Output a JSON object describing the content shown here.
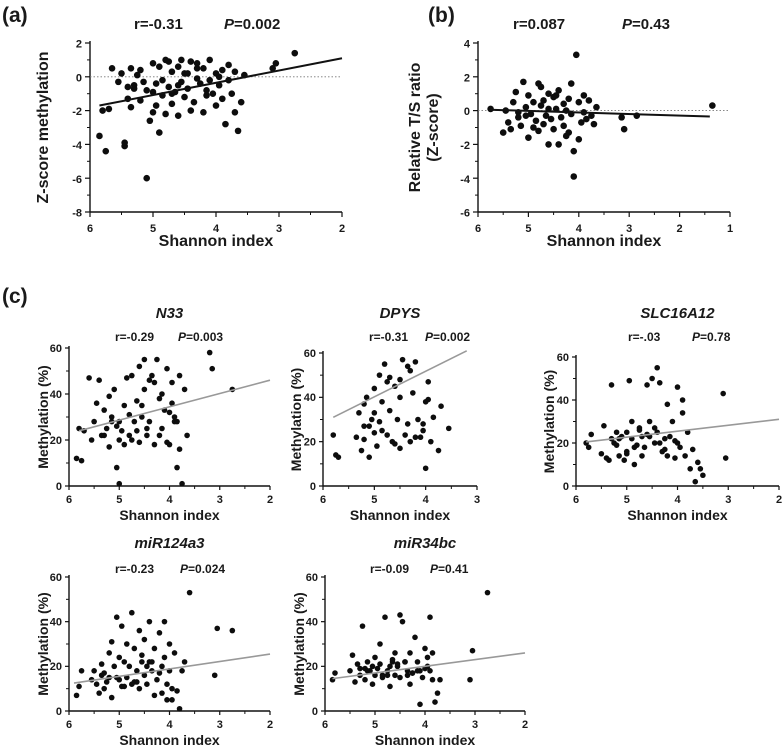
{
  "figure": {
    "panel_labels": [
      "(a)",
      "(b)",
      "(c)"
    ]
  },
  "chart_data": [
    {
      "id": "a",
      "type": "scatter",
      "panel_label": "(a)",
      "title": "",
      "stat_r": "r=-0.31",
      "stat_p_letter": "P",
      "stat_p_value": "=0.002",
      "xlabel": "Shannon index",
      "ylabel": "Z-score methylation",
      "xlim": [
        6,
        2
      ],
      "ylim": [
        -8,
        2
      ],
      "xticks": [
        6,
        5,
        4,
        3,
        2
      ],
      "yticks": [
        -8,
        -6,
        -4,
        -2,
        0,
        2
      ],
      "refline": 0,
      "fit": [
        [
          5.85,
          -1.7
        ],
        [
          2,
          1.1
        ]
      ],
      "fit_color": "#111111",
      "x": [
        5.85,
        5.8,
        5.75,
        5.7,
        5.65,
        5.55,
        5.5,
        5.45,
        5.45,
        5.4,
        5.35,
        5.3,
        5.3,
        5.25,
        5.2,
        5.2,
        5.15,
        5.1,
        5.1,
        5.05,
        5.0,
        5.0,
        4.95,
        4.95,
        4.9,
        4.9,
        4.85,
        4.85,
        4.8,
        4.8,
        4.75,
        4.75,
        4.7,
        4.7,
        4.65,
        4.6,
        4.6,
        4.55,
        4.55,
        4.5,
        4.5,
        4.45,
        4.4,
        4.4,
        4.35,
        4.3,
        4.3,
        4.25,
        4.2,
        4.2,
        4.15,
        4.1,
        4.1,
        4.05,
        4.0,
        4.0,
        3.95,
        3.9,
        3.9,
        3.85,
        3.8,
        3.8,
        3.75,
        3.7,
        3.7,
        3.65,
        3.6,
        3.55,
        3.1,
        3.05,
        2.75,
        5.0,
        4.6,
        4.3,
        5.35,
        4.15,
        3.95,
        5.4,
        4.45,
        4.7
      ],
      "y": [
        -3.5,
        -2.0,
        -4.4,
        -1.9,
        0.5,
        -0.3,
        0.2,
        -4.1,
        -3.9,
        -1.3,
        0.5,
        -0.5,
        -0.7,
        0.1,
        0.4,
        -1.4,
        -0.3,
        -0.8,
        -6.0,
        -2.6,
        -2.1,
        0.8,
        -0.4,
        -1.7,
        -3.3,
        0.6,
        -0.2,
        -1.1,
        -2.2,
        1.0,
        -0.6,
        0.9,
        -1.6,
        0.3,
        -0.9,
        -2.3,
        0.6,
        -0.3,
        1.0,
        -1.2,
        0.2,
        -0.7,
        -2.0,
        0.9,
        -1.5,
        -0.1,
        0.8,
        -0.4,
        -2.1,
        0.5,
        -0.8,
        -0.2,
        1.0,
        -1.0,
        0.2,
        -1.7,
        -0.5,
        0.4,
        -1.3,
        -2.8,
        -0.2,
        0.7,
        -1.0,
        0.3,
        -2.1,
        -3.2,
        -1.5,
        0.1,
        0.5,
        0.8,
        1.4,
        -0.9,
        -0.5,
        0.5,
        -1.8,
        -1.1,
        0.0,
        -0.6,
        0.2,
        -1.0
      ]
    },
    {
      "id": "b",
      "type": "scatter",
      "panel_label": "(b)",
      "title": "",
      "stat_r": "r=0.087",
      "stat_p_letter": "P",
      "stat_p_value": "=0.43",
      "xlabel": "Shannon index",
      "ylabel_lines": [
        "Relative T/S ratio",
        "(Z-score)"
      ],
      "xlim": [
        6,
        1
      ],
      "ylim": [
        -6,
        4
      ],
      "xticks": [
        6,
        5,
        4,
        3,
        2,
        1
      ],
      "yticks": [
        -6,
        -4,
        -2,
        0,
        2,
        4
      ],
      "refline": 0,
      "fit": [
        [
          5.75,
          0.05
        ],
        [
          1.4,
          -0.35
        ]
      ],
      "fit_color": "#111111",
      "x": [
        5.75,
        5.5,
        5.45,
        5.4,
        5.35,
        5.3,
        5.25,
        5.2,
        5.15,
        5.1,
        5.05,
        5.0,
        5.0,
        4.95,
        4.9,
        4.9,
        4.85,
        4.8,
        4.8,
        4.75,
        4.7,
        4.7,
        4.65,
        4.6,
        4.6,
        4.55,
        4.5,
        4.5,
        4.45,
        4.4,
        4.4,
        4.35,
        4.3,
        4.3,
        4.25,
        4.2,
        4.2,
        4.15,
        4.1,
        4.1,
        4.05,
        4.0,
        4.0,
        3.95,
        3.9,
        3.9,
        3.85,
        3.8,
        3.75,
        3.7,
        3.65,
        3.15,
        3.1,
        2.85,
        1.35,
        5.2,
        4.75,
        4.45,
        4.15,
        5.05,
        4.6,
        4.25
      ],
      "y": [
        0.1,
        -1.3,
        0.0,
        -0.7,
        -1.1,
        0.5,
        1.1,
        -0.4,
        -0.9,
        1.7,
        0.2,
        -1.6,
        0.9,
        -0.2,
        -1.0,
        0.5,
        -0.6,
        1.6,
        -1.2,
        0.3,
        -0.8,
        0.6,
        -0.3,
        -2.0,
        1.0,
        -0.5,
        -1.1,
        0.8,
        0.1,
        -2.0,
        1.2,
        -0.4,
        -0.9,
        0.4,
        0.0,
        -1.3,
        0.7,
        -0.2,
        -2.4,
        -3.9,
        3.3,
        -1.7,
        0.5,
        -0.7,
        -0.1,
        0.9,
        -0.5,
        0.6,
        -0.3,
        -0.8,
        0.2,
        -0.4,
        -1.1,
        -0.3,
        0.3,
        -0.1,
        1.4,
        0.9,
        1.6,
        -0.3,
        0.1,
        -1.5
      ]
    },
    {
      "id": "N33",
      "type": "scatter",
      "title": "N33",
      "stat_r": "r=-0.29",
      "stat_p_letter": "P",
      "stat_p_value": "=0.003",
      "xlabel": "Shannon index",
      "ylabel": "Methylation (%)",
      "xlim": [
        6,
        2
      ],
      "ylim": [
        0,
        60
      ],
      "xticks": [
        6,
        5,
        4,
        3,
        2
      ],
      "yticks": [
        0,
        20,
        40,
        60
      ],
      "fit": [
        [
          5.8,
          24
        ],
        [
          2,
          46
        ]
      ],
      "fit_color": "#999999",
      "x": [
        5.85,
        5.8,
        5.75,
        5.7,
        5.6,
        5.55,
        5.5,
        5.45,
        5.4,
        5.35,
        5.3,
        5.25,
        5.2,
        5.2,
        5.15,
        5.1,
        5.05,
        5.0,
        5.0,
        4.95,
        4.9,
        4.9,
        4.85,
        4.8,
        4.75,
        4.75,
        4.7,
        4.65,
        4.6,
        4.6,
        4.55,
        4.5,
        4.5,
        4.45,
        4.4,
        4.4,
        4.35,
        4.3,
        4.25,
        4.2,
        4.2,
        4.15,
        4.1,
        4.05,
        4.0,
        4.0,
        3.95,
        3.9,
        3.85,
        3.8,
        3.8,
        3.75,
        3.7,
        3.65,
        3.2,
        3.15,
        2.75,
        5.15,
        4.65,
        4.3,
        3.9,
        5.0,
        4.45,
        4.15,
        5.3,
        4.8,
        4.55,
        4.05,
        3.95,
        3.85,
        5.05
      ],
      "y": [
        12,
        25,
        11,
        24,
        47,
        20,
        28,
        36,
        46,
        22,
        33,
        25,
        39,
        17,
        30,
        42,
        8,
        28,
        20,
        24,
        18,
        35,
        47,
        22,
        20,
        48,
        28,
        37,
        52,
        19,
        30,
        42,
        55,
        22,
        46,
        28,
        48,
        18,
        55,
        38,
        22,
        25,
        33,
        51,
        18,
        32,
        36,
        28,
        8,
        16,
        48,
        1,
        42,
        22,
        58,
        51,
        42,
        28,
        24,
        45,
        30,
        1,
        25,
        40,
        22,
        31,
        35,
        19,
        45,
        28,
        26
      ]
    },
    {
      "id": "DPYS",
      "type": "scatter",
      "title": "DPYS",
      "stat_r": "r=-0.31",
      "stat_p_letter": "P",
      "stat_p_value": "=0.002",
      "xlabel": "Shannon index",
      "ylabel": "Methylation (%)",
      "xlim": [
        6,
        3
      ],
      "ylim": [
        0,
        60
      ],
      "xticks": [
        6,
        5,
        4,
        3
      ],
      "yticks": [
        0,
        20,
        40,
        60
      ],
      "fit": [
        [
          5.8,
          31
        ],
        [
          3.2,
          61
        ]
      ],
      "fit_color": "#999999",
      "x": [
        5.8,
        5.75,
        5.7,
        5.35,
        5.3,
        5.25,
        5.2,
        5.2,
        5.15,
        5.1,
        5.05,
        5.0,
        5.0,
        4.95,
        4.9,
        4.9,
        4.85,
        4.8,
        4.75,
        4.7,
        4.7,
        4.65,
        4.6,
        4.55,
        4.5,
        4.5,
        4.45,
        4.4,
        4.35,
        4.3,
        4.3,
        4.25,
        4.2,
        4.15,
        4.1,
        4.05,
        4.0,
        4.0,
        3.95,
        3.9,
        3.85,
        3.75,
        3.7,
        3.55,
        5.1,
        4.85,
        4.6,
        4.35,
        4.05,
        5.0,
        4.75,
        4.2,
        3.95,
        4.5,
        5.2
      ],
      "y": [
        23,
        14,
        13,
        22,
        33,
        16,
        27,
        37,
        40,
        13,
        30,
        24,
        44,
        18,
        50,
        29,
        25,
        55,
        23,
        34,
        49,
        20,
        45,
        30,
        17,
        40,
        57,
        23,
        28,
        52,
        20,
        42,
        56,
        30,
        22,
        25,
        8,
        38,
        47,
        20,
        31,
        16,
        36,
        26,
        27,
        38,
        19,
        54,
        28,
        33,
        47,
        22,
        39,
        48,
        21
      ]
    },
    {
      "id": "SLC16A12",
      "type": "scatter",
      "title": "SLC16A12",
      "stat_r": "r=-.03",
      "stat_p_letter": "P",
      "stat_p_value": "=0.78",
      "xlabel": "Shannon index",
      "ylabel": "Methylation (%)",
      "xlim": [
        6,
        2
      ],
      "ylim": [
        0,
        60
      ],
      "xticks": [
        6,
        5,
        4,
        3,
        2
      ],
      "yticks": [
        0,
        20,
        40,
        60
      ],
      "fit": [
        [
          5.8,
          20.5
        ],
        [
          2,
          31
        ]
      ],
      "fit_color": "#999999",
      "x": [
        5.8,
        5.75,
        5.7,
        5.5,
        5.45,
        5.4,
        5.35,
        5.3,
        5.25,
        5.2,
        5.2,
        5.15,
        5.1,
        5.05,
        5.0,
        5.0,
        4.95,
        4.9,
        4.9,
        4.85,
        4.8,
        4.75,
        4.7,
        4.7,
        4.65,
        4.6,
        4.55,
        4.55,
        4.5,
        4.45,
        4.4,
        4.4,
        4.35,
        4.3,
        4.25,
        4.2,
        4.2,
        4.15,
        4.1,
        4.05,
        4.0,
        4.0,
        3.95,
        3.9,
        3.85,
        3.8,
        3.75,
        3.7,
        3.65,
        3.6,
        3.55,
        3.5,
        3.1,
        3.05,
        5.3,
        4.85,
        4.45,
        4.05,
        5.0,
        4.6,
        4.25,
        3.9,
        5.15,
        4.75,
        4.35
      ],
      "y": [
        20,
        18,
        24,
        15,
        28,
        13,
        12,
        47,
        20,
        25,
        19,
        14,
        23,
        12,
        25,
        16,
        49,
        30,
        22,
        10,
        19,
        27,
        14,
        23,
        18,
        47,
        23,
        30,
        50,
        20,
        55,
        25,
        48,
        16,
        22,
        14,
        38,
        23,
        30,
        13,
        20,
        46,
        18,
        34,
        14,
        25,
        8,
        17,
        2,
        11,
        8,
        5,
        43,
        13,
        22,
        18,
        27,
        21,
        15,
        24,
        17,
        40,
        22,
        26,
        20
      ]
    },
    {
      "id": "miR124a3",
      "type": "scatter",
      "title": "miR124a3",
      "stat_r": "r=-0.23",
      "stat_p_letter": "P",
      "stat_p_value": "=0.024",
      "xlabel": "Shannon index",
      "ylabel": "Methylation (%)",
      "xlim": [
        6,
        2
      ],
      "ylim": [
        0,
        60
      ],
      "xticks": [
        6,
        5,
        4,
        3,
        2
      ],
      "yticks": [
        0,
        20,
        40,
        60
      ],
      "fit": [
        [
          5.9,
          12.5
        ],
        [
          2,
          25.5
        ]
      ],
      "fit_color": "#999999",
      "x": [
        5.85,
        5.8,
        5.75,
        5.55,
        5.5,
        5.45,
        5.4,
        5.35,
        5.3,
        5.3,
        5.25,
        5.2,
        5.15,
        5.15,
        5.1,
        5.05,
        5.05,
        5.0,
        4.95,
        4.95,
        4.9,
        4.85,
        4.85,
        4.8,
        4.75,
        4.7,
        4.7,
        4.65,
        4.6,
        4.6,
        4.55,
        4.5,
        4.5,
        4.45,
        4.4,
        4.4,
        4.35,
        4.3,
        4.3,
        4.25,
        4.2,
        4.15,
        4.1,
        4.1,
        4.05,
        4.0,
        4.0,
        3.95,
        3.9,
        3.85,
        3.8,
        3.75,
        3.7,
        3.6,
        3.1,
        3.05,
        2.75,
        5.2,
        4.9,
        4.55,
        4.2,
        3.95,
        5.0,
        4.75,
        4.45,
        4.15,
        5.35,
        4.65,
        4.35,
        4.05
      ],
      "y": [
        7,
        11,
        18,
        14,
        18,
        12,
        8,
        21,
        10,
        17,
        13,
        26,
        31,
        6,
        20,
        42,
        15,
        24,
        38,
        11,
        22,
        15,
        30,
        20,
        44,
        13,
        28,
        18,
        36,
        10,
        25,
        16,
        32,
        12,
        40,
        22,
        18,
        7,
        28,
        14,
        35,
        20,
        40,
        24,
        12,
        30,
        18,
        5,
        26,
        9,
        1,
        18,
        22,
        53,
        16,
        37,
        36,
        15,
        11,
        22,
        17,
        10,
        14,
        12,
        20,
        8,
        16,
        13,
        22,
        5
      ]
    },
    {
      "id": "miR34bc",
      "type": "scatter",
      "title": "miR34bc",
      "stat_r": "r=-0.09",
      "stat_p_letter": "P",
      "stat_p_value": "=0.41",
      "xlabel": "Shannon index",
      "ylabel": "Methylation (%)",
      "xlim": [
        6,
        2
      ],
      "ylim": [
        0,
        60
      ],
      "xticks": [
        6,
        5,
        4,
        3,
        2
      ],
      "yticks": [
        0,
        20,
        40,
        60
      ],
      "fit": [
        [
          5.85,
          14.5
        ],
        [
          2,
          26
        ]
      ],
      "fit_color": "#999999",
      "x": [
        5.85,
        5.8,
        5.5,
        5.45,
        5.4,
        5.35,
        5.3,
        5.25,
        5.2,
        5.2,
        5.15,
        5.1,
        5.05,
        5.0,
        5.0,
        4.95,
        4.9,
        4.9,
        4.85,
        4.8,
        4.75,
        4.7,
        4.7,
        4.65,
        4.6,
        4.6,
        4.55,
        4.5,
        4.5,
        4.45,
        4.4,
        4.35,
        4.3,
        4.3,
        4.25,
        4.2,
        4.15,
        4.1,
        4.1,
        4.05,
        4.0,
        3.95,
        3.9,
        3.9,
        3.85,
        3.8,
        3.75,
        3.7,
        3.1,
        3.05,
        2.75,
        5.15,
        4.85,
        4.55,
        4.25,
        3.95,
        5.05,
        4.75,
        4.4,
        4.15,
        3.85,
        5.3,
        4.65,
        4.35,
        4.0
      ],
      "y": [
        14,
        17,
        18,
        25,
        13,
        21,
        16,
        38,
        19,
        14,
        22,
        18,
        12,
        24,
        16,
        19,
        21,
        30,
        15,
        42,
        18,
        20,
        11,
        22,
        16,
        26,
        20,
        43,
        15,
        40,
        22,
        18,
        12,
        26,
        17,
        33,
        22,
        3,
        18,
        15,
        28,
        20,
        42,
        18,
        26,
        4,
        8,
        14,
        14,
        27,
        53,
        18,
        16,
        21,
        17,
        24,
        20,
        16,
        22,
        18,
        14,
        19,
        23,
        16,
        19
      ]
    }
  ]
}
